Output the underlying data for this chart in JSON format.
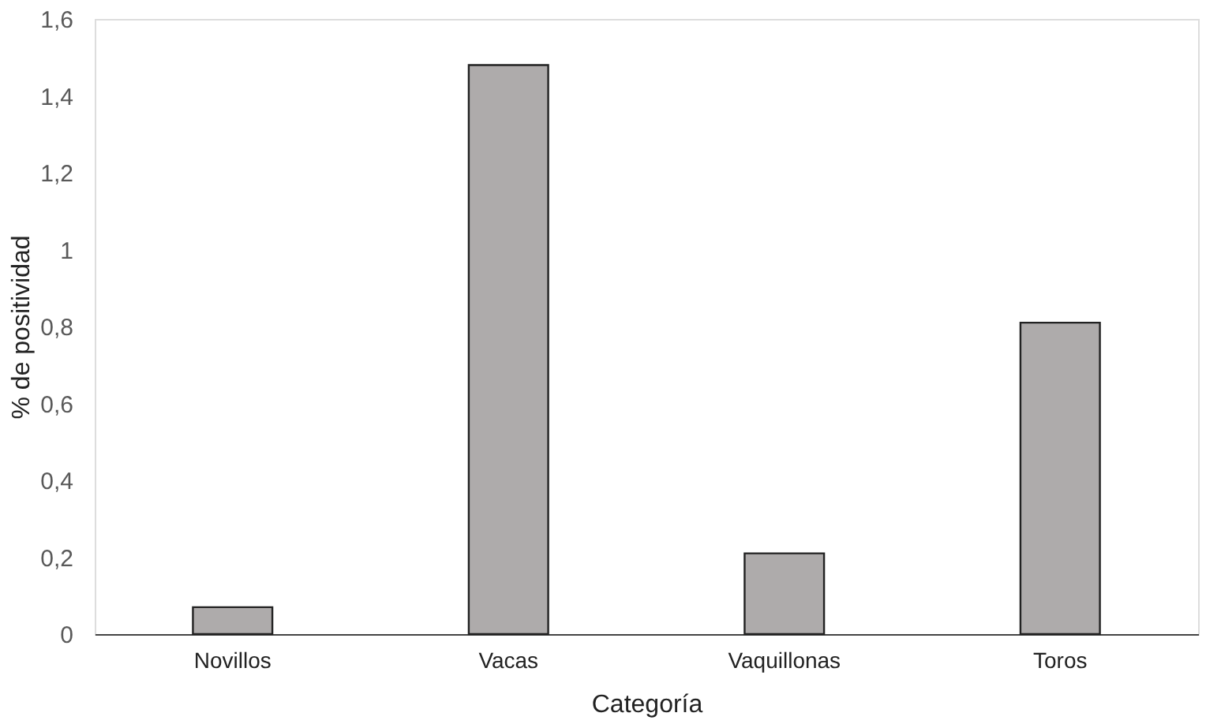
{
  "chart_data": {
    "type": "bar",
    "xlabel": "Categoría",
    "ylabel": "% de positividad",
    "categories": [
      "Novillos",
      "Vacas",
      "Vaquillonas",
      "Toros"
    ],
    "values": [
      0.07,
      1.48,
      0.21,
      0.81
    ],
    "color": "#aeabab",
    "ylim": [
      0,
      1.6
    ],
    "yticks": [
      {
        "value": 0,
        "label": "0"
      },
      {
        "value": 0.2,
        "label": "0,2"
      },
      {
        "value": 0.4,
        "label": "0,4"
      },
      {
        "value": 0.6,
        "label": "0,6"
      },
      {
        "value": 0.8,
        "label": "0,8"
      },
      {
        "value": 1,
        "label": "1"
      },
      {
        "value": 1.2,
        "label": "1,2"
      },
      {
        "value": 1.4,
        "label": "1,4"
      },
      {
        "value": 1.6,
        "label": "1,6"
      }
    ],
    "grid": false
  }
}
